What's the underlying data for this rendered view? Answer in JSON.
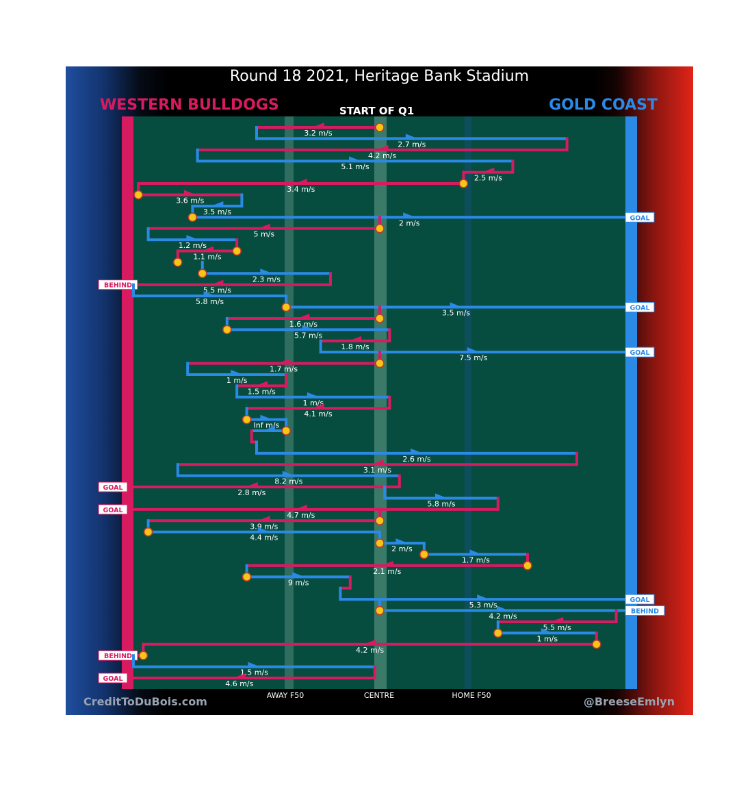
{
  "header": {
    "title": "Round 18 2021, Heritage Bank Stadium",
    "team_left": "WESTERN BULLDOGS",
    "team_right": "GOLD COAST",
    "quarter": "START OF Q1"
  },
  "footer": {
    "credit_left": "CreditToDuBois.com",
    "credit_right": "@BreeseEmlyn",
    "zones": {
      "away": "AWAY F50",
      "centre": "CENTRE",
      "home": "HOME F50"
    }
  },
  "colors": {
    "western_bulldogs": "#d81b60",
    "gold_coast": "#2a8ae6",
    "field": "#064d3f",
    "event_marker": "#f5c518",
    "marker_outline": "#c0392b"
  },
  "chart_data": {
    "type": "line",
    "title": "Round 18 2021, Heritage Bank Stadium",
    "subtitle": "START OF Q1",
    "xlabel": "",
    "ylabel": "",
    "x_ticks": [
      "AWAY F50",
      "CENTRE",
      "HOME F50"
    ],
    "x_units": "field position, 0 = Western Bulldogs goal line, 1 = Gold Coast goal line",
    "xlim": [
      0,
      1
    ],
    "y_order": "chronological, top to bottom",
    "series": [
      {
        "name": "WESTERN BULLDOGS",
        "color": "#d81b60"
      },
      {
        "name": "GOLD COAST",
        "color": "#2a8ae6"
      }
    ],
    "chains": [
      {
        "team": "WESTERN BULLDOGS",
        "label": "3.2 m/s",
        "from": 0.5,
        "to": 0.25,
        "start_marker": true
      },
      {
        "team": "GOLD COAST",
        "label": "2.7 m/s",
        "from": 0.25,
        "to": 0.88
      },
      {
        "team": "WESTERN BULLDOGS",
        "label": "4.2 m/s",
        "from": 0.88,
        "to": 0.13
      },
      {
        "team": "GOLD COAST",
        "label": "5.1 m/s",
        "from": 0.13,
        "to": 0.77
      },
      {
        "team": "WESTERN BULLDOGS",
        "label": "2.5 m/s",
        "from": 0.77,
        "to": 0.67
      },
      {
        "team": "WESTERN BULLDOGS",
        "label": "3.4 m/s",
        "from": 0.67,
        "to": 0.01,
        "start_marker": true
      },
      {
        "team": "WESTERN BULLDOGS",
        "label": "3.6 m/s",
        "from": 0.01,
        "to": 0.22,
        "start_marker": true
      },
      {
        "team": "GOLD COAST",
        "label": "3.5 m/s",
        "from": 0.22,
        "to": 0.12
      },
      {
        "team": "GOLD COAST",
        "label": "2 m/s",
        "from": 0.12,
        "to": 1.0,
        "start_marker": true,
        "outcome": "GOAL"
      },
      {
        "team": "WESTERN BULLDOGS",
        "label": "5 m/s",
        "from": 0.5,
        "to": 0.03,
        "start_marker": true
      },
      {
        "team": "GOLD COAST",
        "label": "1.2 m/s",
        "from": 0.03,
        "to": 0.21
      },
      {
        "team": "WESTERN BULLDOGS",
        "label": "1.1 m/s",
        "from": 0.21,
        "to": 0.09,
        "start_marker": true
      },
      {
        "team": "WESTERN BULLDOGS",
        "label": "",
        "from": 0.09,
        "to": 0.08,
        "start_marker": true
      },
      {
        "team": "GOLD COAST",
        "label": "2.3 m/s",
        "from": 0.14,
        "to": 0.4,
        "start_marker": true
      },
      {
        "team": "WESTERN BULLDOGS",
        "label": "5.5 m/s",
        "from": 0.4,
        "to": -0.06,
        "outcome": "BEHIND"
      },
      {
        "team": "GOLD COAST",
        "label": "5.8 m/s",
        "from": 0.0,
        "to": 0.31
      },
      {
        "team": "GOLD COAST",
        "label": "3.5 m/s",
        "from": 0.31,
        "to": 1.0,
        "start_marker": true,
        "outcome": "GOAL"
      },
      {
        "team": "WESTERN BULLDOGS",
        "label": "1.6 m/s",
        "from": 0.5,
        "to": 0.19,
        "start_marker": true
      },
      {
        "team": "GOLD COAST",
        "label": "5.7 m/s",
        "from": 0.19,
        "to": 0.52,
        "start_marker": true
      },
      {
        "team": "WESTERN BULLDOGS",
        "label": "1.8 m/s",
        "from": 0.52,
        "to": 0.38
      },
      {
        "team": "GOLD COAST",
        "label": "7.5 m/s",
        "from": 0.38,
        "to": 1.0,
        "outcome": "GOAL"
      },
      {
        "team": "WESTERN BULLDOGS",
        "label": "1.7 m/s",
        "from": 0.5,
        "to": 0.11,
        "start_marker": true
      },
      {
        "team": "GOLD COAST",
        "label": "1 m/s",
        "from": 0.11,
        "to": 0.31
      },
      {
        "team": "WESTERN BULLDOGS",
        "label": "1.5 m/s",
        "from": 0.31,
        "to": 0.21
      },
      {
        "team": "GOLD COAST",
        "label": "1 m/s",
        "from": 0.21,
        "to": 0.52
      },
      {
        "team": "WESTERN BULLDOGS",
        "label": "4.1 m/s",
        "from": 0.52,
        "to": 0.23
      },
      {
        "team": "GOLD COAST",
        "label": "Inf m/s",
        "from": 0.23,
        "to": 0.31,
        "start_marker": true
      },
      {
        "team": "GOLD COAST",
        "label": "",
        "from": 0.31,
        "to": 0.24,
        "start_marker": true
      },
      {
        "team": "WESTERN BULLDOGS",
        "label": "",
        "from": 0.24,
        "to": 0.25
      },
      {
        "team": "GOLD COAST",
        "label": "2.6 m/s",
        "from": 0.25,
        "to": 0.9
      },
      {
        "team": "WESTERN BULLDOGS",
        "label": "3.1 m/s",
        "from": 0.9,
        "to": 0.09
      },
      {
        "team": "GOLD COAST",
        "label": "8.2 m/s",
        "from": 0.09,
        "to": 0.54
      },
      {
        "team": "WESTERN BULLDOGS",
        "label": "2.8 m/s",
        "from": 0.54,
        "to": -0.06,
        "outcome": "GOAL"
      },
      {
        "team": "GOLD COAST",
        "label": "5.8 m/s",
        "from": 0.51,
        "to": 0.74
      },
      {
        "team": "WESTERN BULLDOGS",
        "label": "4.7 m/s",
        "from": 0.74,
        "to": -0.06,
        "outcome": "GOAL"
      },
      {
        "team": "WESTERN BULLDOGS",
        "label": "3.9 m/s",
        "from": 0.5,
        "to": 0.03,
        "start_marker": true
      },
      {
        "team": "GOLD COAST",
        "label": "4.4 m/s",
        "from": 0.03,
        "to": 0.5,
        "start_marker": true
      },
      {
        "team": "GOLD COAST",
        "label": "2 m/s",
        "from": 0.5,
        "to": 0.59,
        "start_marker": true
      },
      {
        "team": "GOLD COAST",
        "label": "1.7 m/s",
        "from": 0.59,
        "to": 0.8,
        "start_marker": true
      },
      {
        "team": "WESTERN BULLDOGS",
        "label": "2.1 m/s",
        "from": 0.8,
        "to": 0.23,
        "start_marker": true
      },
      {
        "team": "GOLD COAST",
        "label": "9 m/s",
        "from": 0.23,
        "to": 0.44,
        "start_marker": true
      },
      {
        "team": "WESTERN BULLDOGS",
        "label": "",
        "from": 0.44,
        "to": 0.42
      },
      {
        "team": "GOLD COAST",
        "label": "5.3 m/s",
        "from": 0.42,
        "to": 1.0,
        "outcome": "GOAL"
      },
      {
        "team": "GOLD COAST",
        "label": "4.2 m/s",
        "from": 0.5,
        "to": 1.0,
        "start_marker": true,
        "outcome": "BEHIND"
      },
      {
        "team": "WESTERN BULLDOGS",
        "label": "5.5 m/s",
        "from": 0.98,
        "to": 0.74
      },
      {
        "team": "GOLD COAST",
        "label": "1 m/s",
        "from": 0.74,
        "to": 0.94,
        "start_marker": true
      },
      {
        "team": "WESTERN BULLDOGS",
        "label": "4.2 m/s",
        "from": 0.94,
        "to": 0.02,
        "start_marker": true
      },
      {
        "team": "WESTERN BULLDOGS",
        "label": "",
        "from": 0.02,
        "to": -0.06,
        "start_marker": true,
        "outcome": "BEHIND"
      },
      {
        "team": "GOLD COAST",
        "label": "1.5 m/s",
        "from": 0.0,
        "to": 0.49
      },
      {
        "team": "WESTERN BULLDOGS",
        "label": "4.6 m/s",
        "from": 0.49,
        "to": -0.06,
        "outcome": "GOAL"
      }
    ]
  }
}
